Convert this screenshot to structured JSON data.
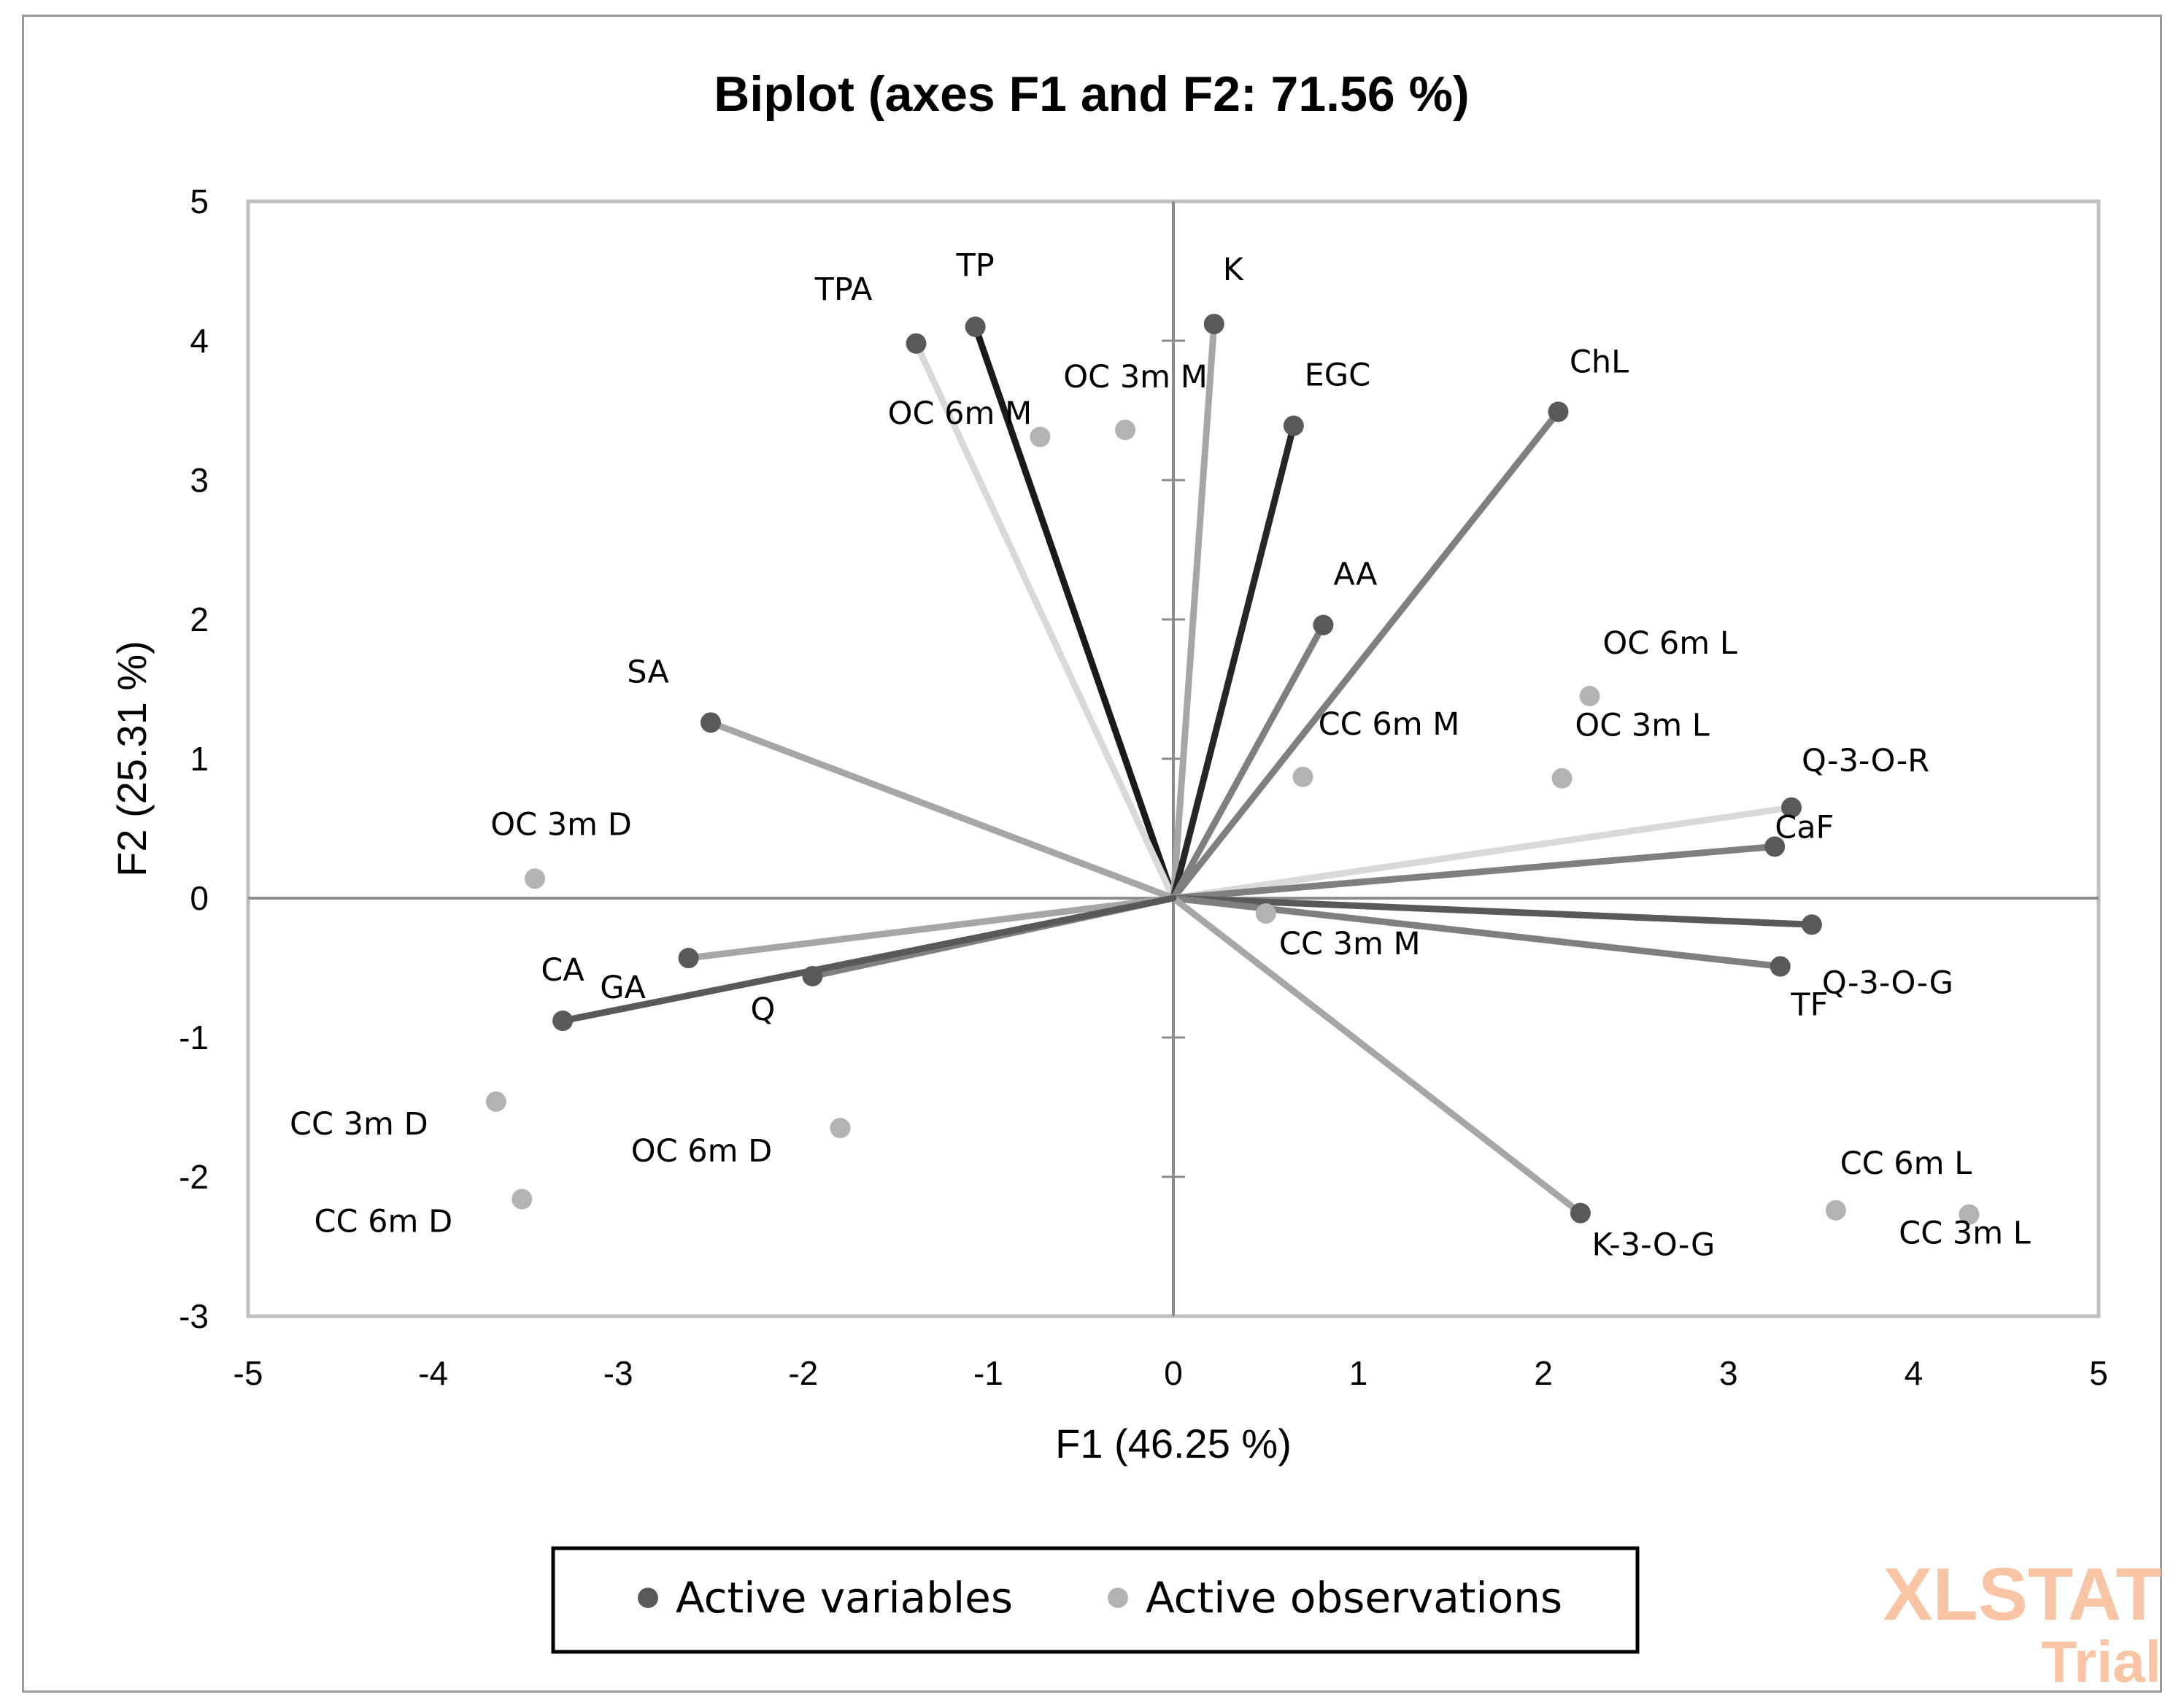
{
  "chart_data": {
    "type": "scatter",
    "title": "Biplot (axes F1 and F2: 71.56 %)",
    "xlabel": "F1 (46.25 %)",
    "ylabel": "F2 (25.31 %)",
    "xlim": [
      -5,
      5
    ],
    "ylim": [
      -3,
      5
    ],
    "xticks": [
      "-5",
      "-4",
      "-3",
      "-2",
      "-1",
      "0",
      "1",
      "2",
      "3",
      "4",
      "5"
    ],
    "yticks": [
      "-3",
      "-2",
      "-1",
      "0",
      "1",
      "2",
      "3",
      "4",
      "5"
    ],
    "grid": false,
    "legend_position": "bottom",
    "series": [
      {
        "name": "Active variables",
        "color": "#595959",
        "points": [
          {
            "label": "TP",
            "x": -1.07,
            "y": 4.1,
            "line_color": "#1a1a1a"
          },
          {
            "label": "TPA",
            "x": -1.39,
            "y": 3.98,
            "line_color": "#d9d9d9"
          },
          {
            "label": "K",
            "x": 0.22,
            "y": 4.12,
            "line_color": "#a6a6a6"
          },
          {
            "label": "EGC",
            "x": 0.65,
            "y": 3.39,
            "line_color": "#262626"
          },
          {
            "label": "ChL",
            "x": 2.08,
            "y": 3.49,
            "line_color": "#7f7f7f"
          },
          {
            "label": "AA",
            "x": 0.81,
            "y": 1.96,
            "line_color": "#7f7f7f"
          },
          {
            "label": "SA",
            "x": -2.5,
            "y": 1.26,
            "line_color": "#a6a6a6"
          },
          {
            "label": "Q-3-O-R",
            "x": 3.34,
            "y": 0.65,
            "line_color": "#d9d9d9"
          },
          {
            "label": "CaF",
            "x": 3.25,
            "y": 0.37,
            "line_color": "#7f7f7f"
          },
          {
            "label": "Q-3-O-G",
            "x": 3.45,
            "y": -0.19,
            "line_color": "#595959"
          },
          {
            "label": "TF",
            "x": 3.28,
            "y": -0.49,
            "line_color": "#7f7f7f"
          },
          {
            "label": "K-3-O-G",
            "x": 2.2,
            "y": -2.26,
            "line_color": "#a6a6a6"
          },
          {
            "label": "GA",
            "x": -2.62,
            "y": -0.43,
            "line_color": "#a6a6a6"
          },
          {
            "label": "Q",
            "x": -1.95,
            "y": -0.56,
            "line_color": "#7f7f7f"
          },
          {
            "label": "CA",
            "x": -3.3,
            "y": -0.88,
            "line_color": "#595959"
          }
        ]
      },
      {
        "name": "Active observations",
        "color": "#b3b3b3",
        "points": [
          {
            "label": "OC 6m M",
            "x": -0.72,
            "y": 3.31
          },
          {
            "label": "OC 3m M",
            "x": -0.26,
            "y": 3.36
          },
          {
            "label": "OC 6m L",
            "x": 2.25,
            "y": 1.45
          },
          {
            "label": "OC 3m L",
            "x": 2.1,
            "y": 0.86
          },
          {
            "label": "CC 6m M",
            "x": 0.7,
            "y": 0.87
          },
          {
            "label": "OC 3m D",
            "x": -3.45,
            "y": 0.14
          },
          {
            "label": "CC 3m M",
            "x": 0.5,
            "y": -0.11
          },
          {
            "label": "CC 3m D",
            "x": -3.66,
            "y": -1.46
          },
          {
            "label": "CC 6m D",
            "x": -3.52,
            "y": -2.16
          },
          {
            "label": "OC 6m D",
            "x": -1.8,
            "y": -1.65
          },
          {
            "label": "CC 6m L",
            "x": 3.58,
            "y": -2.24
          },
          {
            "label": "CC 3m L",
            "x": 4.3,
            "y": -2.27
          }
        ]
      }
    ]
  },
  "watermark": {
    "line1": "XLSTAT",
    "line2": "Trial",
    "color": "#f8c4a4"
  }
}
